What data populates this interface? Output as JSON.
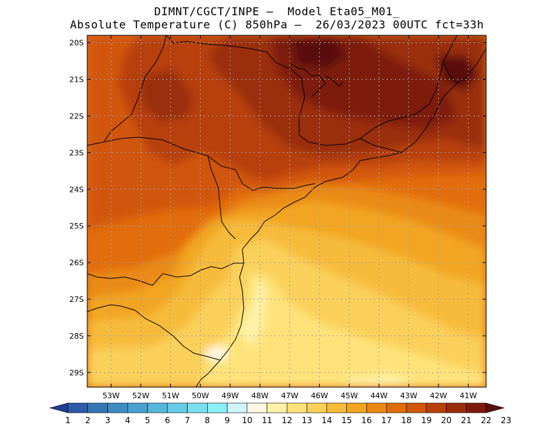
{
  "header": {
    "line1": "DIMNT/CGCT/INPE –  Model Eta05_M01_",
    "line2": "Absolute Temperature (C) 850hPa –  26/03/2023 00UTC fct=33h"
  },
  "map": {
    "lon_range": [
      -53.8,
      -40.4
    ],
    "lat_range": [
      -29.4,
      -19.8
    ],
    "lat_ticks": [
      {
        "value": -20,
        "label": "20S"
      },
      {
        "value": -21,
        "label": "21S"
      },
      {
        "value": -22,
        "label": "22S"
      },
      {
        "value": -23,
        "label": "23S"
      },
      {
        "value": -24,
        "label": "24S"
      },
      {
        "value": -25,
        "label": "25S"
      },
      {
        "value": -26,
        "label": "26S"
      },
      {
        "value": -27,
        "label": "27S"
      },
      {
        "value": -28,
        "label": "28S"
      },
      {
        "value": -29,
        "label": "29S"
      }
    ],
    "lon_ticks": [
      {
        "value": -53,
        "label": "53W"
      },
      {
        "value": -52,
        "label": "52W"
      },
      {
        "value": -51,
        "label": "51W"
      },
      {
        "value": -50,
        "label": "50W"
      },
      {
        "value": -49,
        "label": "49W"
      },
      {
        "value": -48,
        "label": "48W"
      },
      {
        "value": -47,
        "label": "47W"
      },
      {
        "value": -46,
        "label": "46W"
      },
      {
        "value": -45,
        "label": "45W"
      },
      {
        "value": -44,
        "label": "44W"
      },
      {
        "value": -43,
        "label": "43W"
      },
      {
        "value": -42,
        "label": "42W"
      },
      {
        "value": -41,
        "label": "41W"
      }
    ],
    "temperature_regions": [
      {
        "temp": 18,
        "desc": "background warm"
      },
      {
        "temp": 19,
        "desc": "central-west band"
      },
      {
        "temp": 20,
        "desc": "northern area"
      },
      {
        "temp": 21,
        "desc": "north-east core"
      },
      {
        "temp": 22,
        "desc": "north-east maxima"
      },
      {
        "temp": 17,
        "desc": "southern transition"
      },
      {
        "temp": 16,
        "desc": "mid-south band"
      },
      {
        "temp": 15,
        "desc": "central coast"
      },
      {
        "temp": 14,
        "desc": "south-central"
      },
      {
        "temp": 13,
        "desc": "southern coast"
      },
      {
        "temp": 12,
        "desc": "far south"
      },
      {
        "temp": 11,
        "desc": "coastal minima"
      },
      {
        "temp": 10,
        "desc": "small cool spot near 28.5S 49.5W"
      }
    ]
  },
  "colorbar": {
    "labels": [
      "1",
      "2",
      "3",
      "4",
      "5",
      "6",
      "7",
      "8",
      "9",
      "10",
      "11",
      "12",
      "13",
      "14",
      "15",
      "16",
      "17",
      "18",
      "19",
      "20",
      "21",
      "22",
      "23"
    ],
    "colors": [
      "#1f3d92",
      "#2b5aa6",
      "#3476b4",
      "#3c8cc2",
      "#47a2cf",
      "#55b8db",
      "#66cde8",
      "#79dff0",
      "#8cf0f7",
      "#cff4fb",
      "#fff9e3",
      "#fff2a8",
      "#ffe37a",
      "#fad05a",
      "#f7bb3a",
      "#f2a521",
      "#ea8a14",
      "#e26d0c",
      "#d1560a",
      "#b7400a",
      "#9a2d0a",
      "#7d1a0c",
      "#5a0f10"
    ]
  }
}
